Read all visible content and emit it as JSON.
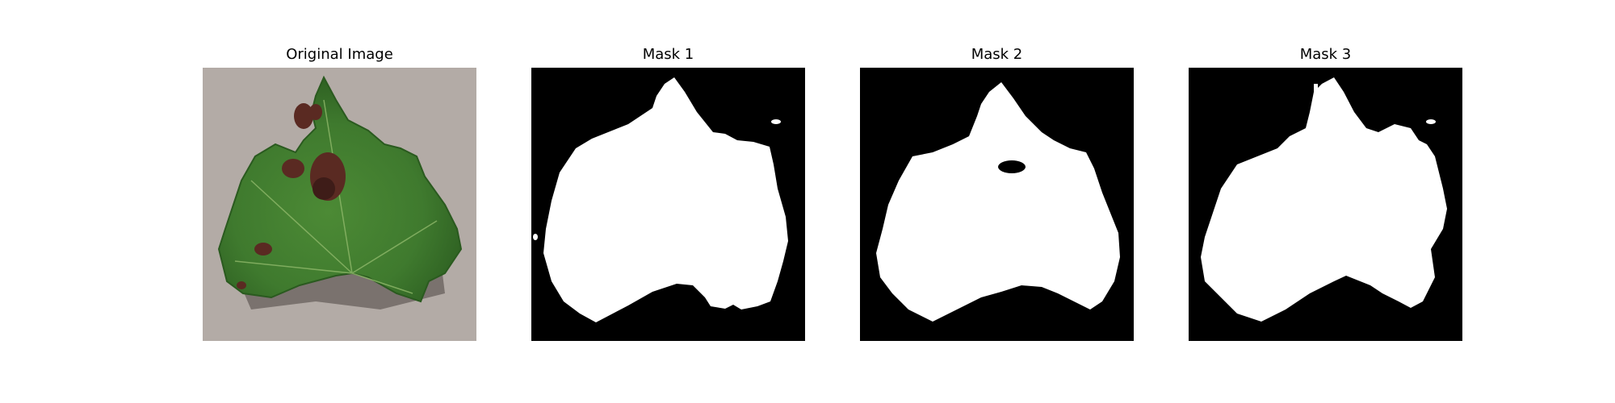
{
  "figure": {
    "panels": [
      {
        "title": "Original Image",
        "kind": "photo"
      },
      {
        "title": "Mask 1",
        "kind": "mask"
      },
      {
        "title": "Mask 2",
        "kind": "mask"
      },
      {
        "title": "Mask 3",
        "kind": "mask"
      }
    ],
    "colors": {
      "background": "#ffffff",
      "mask_background": "#000000",
      "mask_foreground": "#ffffff",
      "photo_background": "#b3aba6",
      "leaf_green": "#3f7a2e",
      "leaf_dark_green": "#2a5a1f",
      "lesion_brown": "#5a2a22"
    }
  }
}
